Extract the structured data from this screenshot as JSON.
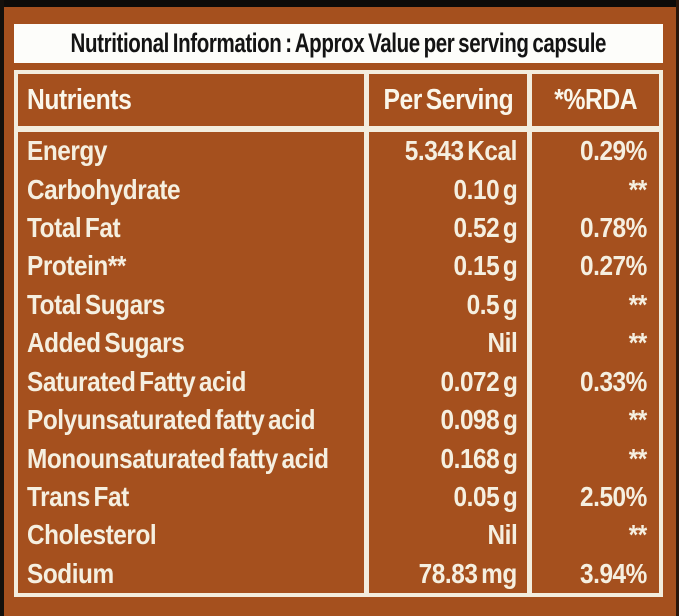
{
  "title": "Nutritional Information : Approx Value per serving capsule",
  "colors": {
    "background_rust": "#a5501e",
    "border_cream": "#f3edde",
    "body_text_cream": "#f5efe0",
    "title_background": "#fdfdfa",
    "title_text": "#141414",
    "photo_edge_black": "#0d0b09"
  },
  "table": {
    "headers": [
      "Nutrients",
      "Per Serving",
      "*%RDA"
    ],
    "rows": [
      {
        "nutrient": "Energy",
        "per_serving": "5.343 Kcal",
        "rda": "0.29%"
      },
      {
        "nutrient": "Carbohydrate",
        "per_serving": "0.10 g",
        "rda": "**"
      },
      {
        "nutrient": "Total Fat",
        "per_serving": "0.52 g",
        "rda": "0.78%"
      },
      {
        "nutrient": "Protein**",
        "per_serving": "0.15 g",
        "rda": "0.27%"
      },
      {
        "nutrient": "Total Sugars",
        "per_serving": "0.5 g",
        "rda": "**"
      },
      {
        "nutrient": "Added Sugars",
        "per_serving": "Nil",
        "rda": "**"
      },
      {
        "nutrient": "Saturated Fatty acid",
        "per_serving": "0.072 g",
        "rda": "0.33%"
      },
      {
        "nutrient": "Polyunsaturated fatty acid",
        "per_serving": "0.098 g",
        "rda": "**"
      },
      {
        "nutrient": "Monounsaturated fatty acid",
        "per_serving": "0.168 g",
        "rda": "**"
      },
      {
        "nutrient": "Trans Fat",
        "per_serving": "0.05 g",
        "rda": "2.50%"
      },
      {
        "nutrient": "Cholesterol",
        "per_serving": "Nil",
        "rda": "**"
      },
      {
        "nutrient": "Sodium",
        "per_serving": "78.83 mg",
        "rda": "3.94%"
      }
    ]
  }
}
